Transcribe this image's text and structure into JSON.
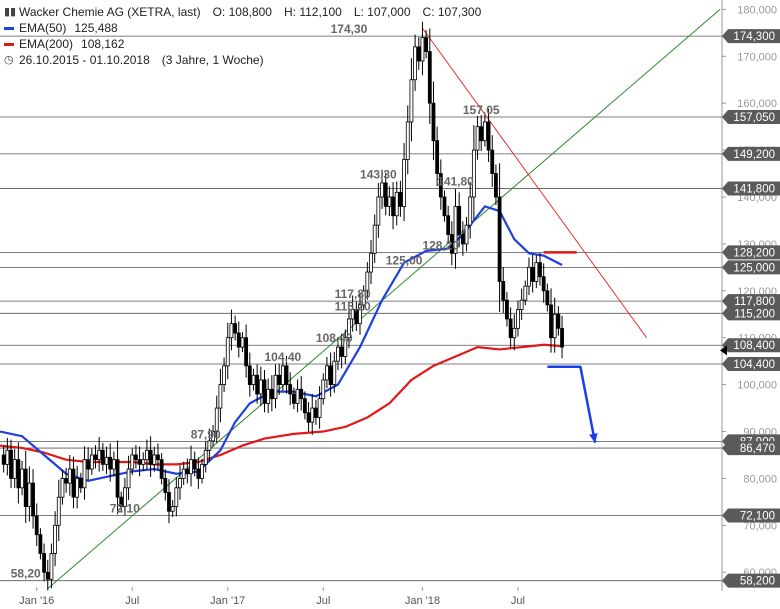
{
  "header": {
    "instrument": "Wacker Chemie AG (XETRA, last)",
    "open": "O: 108,800",
    "high": "H: 112,100",
    "low": "L: 107,000",
    "close": "C: 107,300",
    "ema50_label": "EMA(50)",
    "ema50_value": "125,488",
    "ema200_label": "EMA(200)",
    "ema200_value": "108,162",
    "period": "26.10.2015 - 01.10.2018",
    "period_note": "(3 Jahre, 1 Woche)"
  },
  "colors": {
    "ema50": "#1f3fe0",
    "ema200": "#e01818",
    "uptrend": "#2a8a2a",
    "downtrend": "#e83030",
    "arrow": "#1a3fe8",
    "candle": "#000000",
    "hline": "#555555"
  },
  "chart_data": {
    "type": "candlestick",
    "ylim": [
      56000,
      182000
    ],
    "y_ticks": [
      {
        "value": 60000,
        "label": "60,000"
      },
      {
        "value": 70000,
        "label": "70,000"
      },
      {
        "value": 80000,
        "label": "80,000"
      },
      {
        "value": 90000,
        "label": "90,000"
      },
      {
        "value": 100000,
        "label": "100,000"
      },
      {
        "value": 110000,
        "label": "110,000"
      },
      {
        "value": 120000,
        "label": "120,000"
      },
      {
        "value": 130000,
        "label": "130,000"
      },
      {
        "value": 140000,
        "label": "140,000"
      },
      {
        "value": 150000,
        "label": "150,000"
      },
      {
        "value": 160000,
        "label": "160,000"
      },
      {
        "value": 170000,
        "label": "170,000"
      },
      {
        "value": 180000,
        "label": "180,000"
      }
    ],
    "x_ticks": [
      {
        "week": 10,
        "label": "Jan '16"
      },
      {
        "week": 36,
        "label": "Jul"
      },
      {
        "week": 62,
        "label": "Jan '17"
      },
      {
        "week": 88,
        "label": "Jul"
      },
      {
        "week": 115,
        "label": "Jan '18"
      },
      {
        "week": 141,
        "label": "Jul"
      }
    ],
    "weeks_total": 196,
    "level_lines": [
      {
        "value": 174300,
        "label": "174,300"
      },
      {
        "value": 157050,
        "label": "157,050"
      },
      {
        "value": 149200,
        "label": "149,200"
      },
      {
        "value": 141800,
        "label": "141,800"
      },
      {
        "value": 128200,
        "label": "128,200"
      },
      {
        "value": 125000,
        "label": "125,000"
      },
      {
        "value": 117800,
        "label": "117,800"
      },
      {
        "value": 115200,
        "label": "115,200"
      },
      {
        "value": 108400,
        "label": "108,400"
      },
      {
        "value": 104400,
        "label": "104,400"
      },
      {
        "value": 87900,
        "label": "87,900"
      },
      {
        "value": 86470,
        "label": "86,470"
      },
      {
        "value": 72100,
        "label": "72,100"
      },
      {
        "value": 58200,
        "label": "58,200"
      }
    ],
    "annotations": [
      {
        "week": 95,
        "value": 174300,
        "label": "174,30"
      },
      {
        "week": 131,
        "value": 157050,
        "label": "157,05"
      },
      {
        "week": 103,
        "value": 143300,
        "label": "143,30"
      },
      {
        "week": 124,
        "value": 141800,
        "label": "141,80"
      },
      {
        "week": 110,
        "value": 125000,
        "label": "125,00"
      },
      {
        "week": 120,
        "value": 128200,
        "label": "128,20"
      },
      {
        "week": 96,
        "value": 117800,
        "label": "117,80"
      },
      {
        "week": 96,
        "value": 115200,
        "label": "115,20"
      },
      {
        "week": 91,
        "value": 108400,
        "label": "108,40"
      },
      {
        "week": 77,
        "value": 104400,
        "label": "104,40"
      },
      {
        "week": 56,
        "value": 87900,
        "label": "87,90"
      },
      {
        "week": 34,
        "value": 72100,
        "label": "72,10"
      },
      {
        "week": 7,
        "value": 58200,
        "label": "58,20"
      }
    ],
    "path_points": [
      [
        0,
        85000
      ],
      [
        1,
        83000
      ],
      [
        2,
        86000
      ],
      [
        3,
        80000
      ],
      [
        4,
        84000
      ],
      [
        5,
        78000
      ],
      [
        6,
        82000
      ],
      [
        7,
        74000
      ],
      [
        8,
        79000
      ],
      [
        9,
        72000
      ],
      [
        10,
        68000
      ],
      [
        11,
        64000
      ],
      [
        12,
        60000
      ],
      [
        13,
        58500
      ],
      [
        14,
        64000
      ],
      [
        15,
        70000
      ],
      [
        16,
        76000
      ],
      [
        17,
        80000
      ],
      [
        18,
        79000
      ],
      [
        19,
        82000
      ],
      [
        20,
        76000
      ],
      [
        21,
        80000
      ],
      [
        22,
        78000
      ],
      [
        23,
        84000
      ],
      [
        24,
        82000
      ],
      [
        25,
        85000
      ],
      [
        26,
        84000
      ],
      [
        27,
        86000
      ],
      [
        28,
        83000
      ],
      [
        29,
        84500
      ],
      [
        30,
        82000
      ],
      [
        31,
        84000
      ],
      [
        32,
        76000
      ],
      [
        33,
        74000
      ],
      [
        34,
        78000
      ],
      [
        35,
        82000
      ],
      [
        36,
        85000
      ],
      [
        37,
        84000
      ],
      [
        38,
        83000
      ],
      [
        39,
        84000
      ],
      [
        40,
        86000
      ],
      [
        41,
        83000
      ],
      [
        42,
        85000
      ],
      [
        43,
        84000
      ],
      [
        44,
        80000
      ],
      [
        45,
        77000
      ],
      [
        46,
        73000
      ],
      [
        47,
        74000
      ],
      [
        48,
        78000
      ],
      [
        49,
        80000
      ],
      [
        50,
        82000
      ],
      [
        51,
        81000
      ],
      [
        52,
        84000
      ],
      [
        53,
        82000
      ],
      [
        54,
        80000
      ],
      [
        55,
        83000
      ],
      [
        56,
        86000
      ],
      [
        57,
        88000
      ],
      [
        58,
        90000
      ],
      [
        59,
        95000
      ],
      [
        60,
        100000
      ],
      [
        61,
        104000
      ],
      [
        62,
        110000
      ],
      [
        63,
        113000
      ],
      [
        64,
        111000
      ],
      [
        65,
        108000
      ],
      [
        66,
        110000
      ],
      [
        67,
        104000
      ],
      [
        68,
        100000
      ],
      [
        69,
        102000
      ],
      [
        70,
        98000
      ],
      [
        71,
        101000
      ],
      [
        72,
        96000
      ],
      [
        73,
        99000
      ],
      [
        74,
        97000
      ],
      [
        75,
        102000
      ],
      [
        76,
        100000
      ],
      [
        77,
        104000
      ],
      [
        78,
        100000
      ],
      [
        79,
        98000
      ],
      [
        80,
        96000
      ],
      [
        81,
        99000
      ],
      [
        82,
        97000
      ],
      [
        83,
        94000
      ],
      [
        84,
        92000
      ],
      [
        85,
        95000
      ],
      [
        86,
        93000
      ],
      [
        87,
        97000
      ],
      [
        88,
        101000
      ],
      [
        89,
        104000
      ],
      [
        90,
        100000
      ],
      [
        91,
        105000
      ],
      [
        92,
        108000
      ],
      [
        93,
        106000
      ],
      [
        94,
        110000
      ],
      [
        95,
        114000
      ],
      [
        96,
        116000
      ],
      [
        97,
        113000
      ],
      [
        98,
        117000
      ],
      [
        99,
        120000
      ],
      [
        100,
        124000
      ],
      [
        101,
        128000
      ],
      [
        102,
        134000
      ],
      [
        103,
        140000
      ],
      [
        104,
        143000
      ],
      [
        105,
        138000
      ],
      [
        106,
        140000
      ],
      [
        107,
        136000
      ],
      [
        108,
        141000
      ],
      [
        109,
        138000
      ],
      [
        110,
        148000
      ],
      [
        111,
        156000
      ],
      [
        112,
        165000
      ],
      [
        113,
        172000
      ],
      [
        114,
        169000
      ],
      [
        115,
        174000
      ],
      [
        116,
        171000
      ],
      [
        117,
        160000
      ],
      [
        118,
        152000
      ],
      [
        119,
        145000
      ],
      [
        120,
        140000
      ],
      [
        121,
        136000
      ],
      [
        122,
        132000
      ],
      [
        123,
        128000
      ],
      [
        124,
        138000
      ],
      [
        125,
        132000
      ],
      [
        126,
        130000
      ],
      [
        127,
        134000
      ],
      [
        128,
        140000
      ],
      [
        129,
        150000
      ],
      [
        130,
        155000
      ],
      [
        131,
        152000
      ],
      [
        132,
        156000
      ],
      [
        133,
        150000
      ],
      [
        134,
        145000
      ],
      [
        135,
        140000
      ],
      [
        136,
        122000
      ],
      [
        137,
        118000
      ],
      [
        138,
        114000
      ],
      [
        139,
        110000
      ],
      [
        140,
        112000
      ],
      [
        141,
        116000
      ],
      [
        142,
        118000
      ],
      [
        143,
        121000
      ],
      [
        144,
        125000
      ],
      [
        145,
        122000
      ],
      [
        146,
        126000
      ],
      [
        147,
        123000
      ],
      [
        148,
        120000
      ],
      [
        149,
        117000
      ],
      [
        150,
        110000
      ],
      [
        151,
        115000
      ],
      [
        152,
        112000
      ],
      [
        153,
        108000
      ]
    ],
    "ema50": [
      [
        0,
        90000
      ],
      [
        6,
        89000
      ],
      [
        12,
        85000
      ],
      [
        18,
        81000
      ],
      [
        24,
        79500
      ],
      [
        30,
        80500
      ],
      [
        36,
        81500
      ],
      [
        42,
        82000
      ],
      [
        48,
        81000
      ],
      [
        54,
        81500
      ],
      [
        60,
        86000
      ],
      [
        64,
        92000
      ],
      [
        68,
        96000
      ],
      [
        74,
        98500
      ],
      [
        80,
        98500
      ],
      [
        86,
        97500
      ],
      [
        92,
        100000
      ],
      [
        98,
        108000
      ],
      [
        104,
        118000
      ],
      [
        110,
        126000
      ],
      [
        116,
        128500
      ],
      [
        122,
        129000
      ],
      [
        126,
        132000
      ],
      [
        132,
        138000
      ],
      [
        136,
        137000
      ],
      [
        140,
        131000
      ],
      [
        144,
        128000
      ],
      [
        148,
        127500
      ],
      [
        153,
        125500
      ]
    ],
    "ema200": [
      [
        0,
        87000
      ],
      [
        6,
        86500
      ],
      [
        12,
        85500
      ],
      [
        18,
        84000
      ],
      [
        24,
        83500
      ],
      [
        30,
        83500
      ],
      [
        36,
        83500
      ],
      [
        42,
        83000
      ],
      [
        48,
        83000
      ],
      [
        54,
        83500
      ],
      [
        60,
        85000
      ],
      [
        66,
        87000
      ],
      [
        72,
        88500
      ],
      [
        80,
        89500
      ],
      [
        88,
        90000
      ],
      [
        94,
        91000
      ],
      [
        100,
        93000
      ],
      [
        106,
        96000
      ],
      [
        112,
        101000
      ],
      [
        118,
        104000
      ],
      [
        124,
        106000
      ],
      [
        130,
        108000
      ],
      [
        136,
        107500
      ],
      [
        142,
        108000
      ],
      [
        148,
        108500
      ],
      [
        153,
        108200
      ]
    ],
    "uptrend": [
      [
        13,
        56500
      ],
      [
        196,
        180000
      ]
    ],
    "downtrend": [
      [
        115,
        176000
      ],
      [
        176,
        110000
      ]
    ],
    "resistance_marker": {
      "week_start": 148,
      "week_end": 157,
      "value": 128200
    },
    "projection_arrow": [
      [
        149,
        103800
      ],
      [
        158,
        103800
      ],
      [
        162,
        87600
      ]
    ]
  }
}
